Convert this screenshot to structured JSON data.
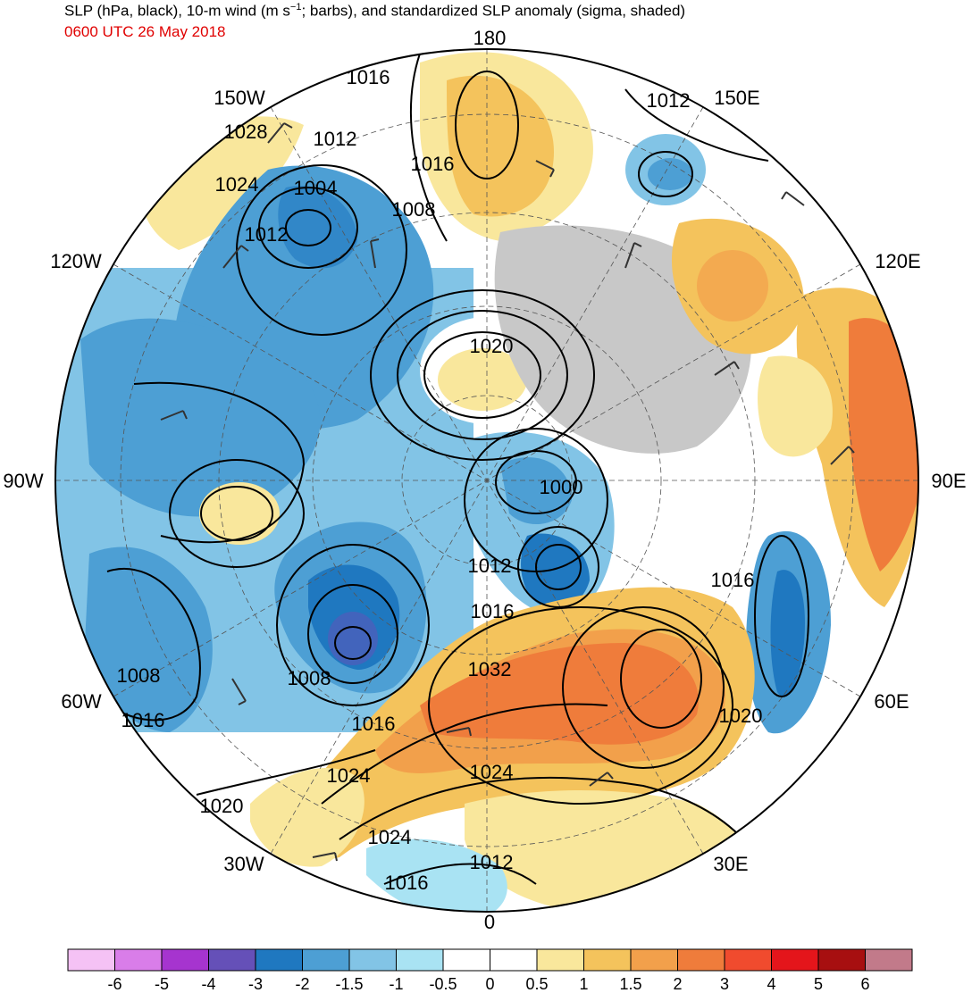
{
  "title": {
    "line1": "SLP (hPa, black), 10-m wind (m s",
    "line1_sup": "−1",
    "line1_rest": "; barbs), and standardized SLP anomaly (sigma, shaded)",
    "line2": "0600 UTC 26 May 2018"
  },
  "longitude_labels": {
    "lon_180": "180",
    "lon_150w": "150W",
    "lon_150e": "150E",
    "lon_120w": "120W",
    "lon_120e": "120E",
    "lon_90w": "90W",
    "lon_90e": "90E",
    "lon_60w": "60W",
    "lon_60e": "60E",
    "lon_30w": "30W",
    "lon_30e": "30E",
    "lon_0": "0"
  },
  "contour_labels": [
    "1016",
    "1012",
    "1028",
    "1012",
    "1016",
    "1024",
    "1004",
    "1008",
    "1012",
    "1020",
    "1000",
    "1012",
    "1016",
    "1032",
    "1016",
    "1008",
    "1008",
    "1016",
    "1016",
    "1020",
    "1024",
    "1024",
    "1020",
    "1024",
    "1012",
    "1016"
  ],
  "colorbar": {
    "ticks": [
      "-6",
      "-5",
      "-4",
      "-3",
      "-2",
      "-1.5",
      "-1",
      "-0.5",
      "0",
      "0.5",
      "1",
      "1.5",
      "2",
      "3",
      "4",
      "5",
      "6"
    ],
    "colors": [
      "#f5c2f5",
      "#d97de9",
      "#a634cf",
      "#6550b8",
      "#1f78c0",
      "#4d9fd4",
      "#82c4e6",
      "#a9e3f3",
      "#ffffff",
      "#ffffff",
      "#f9e79c",
      "#f4c35c",
      "#f2a04b",
      "#ef7c3b",
      "#f04b2e",
      "#e4151b",
      "#a70f10",
      "#c27a8a"
    ]
  }
}
